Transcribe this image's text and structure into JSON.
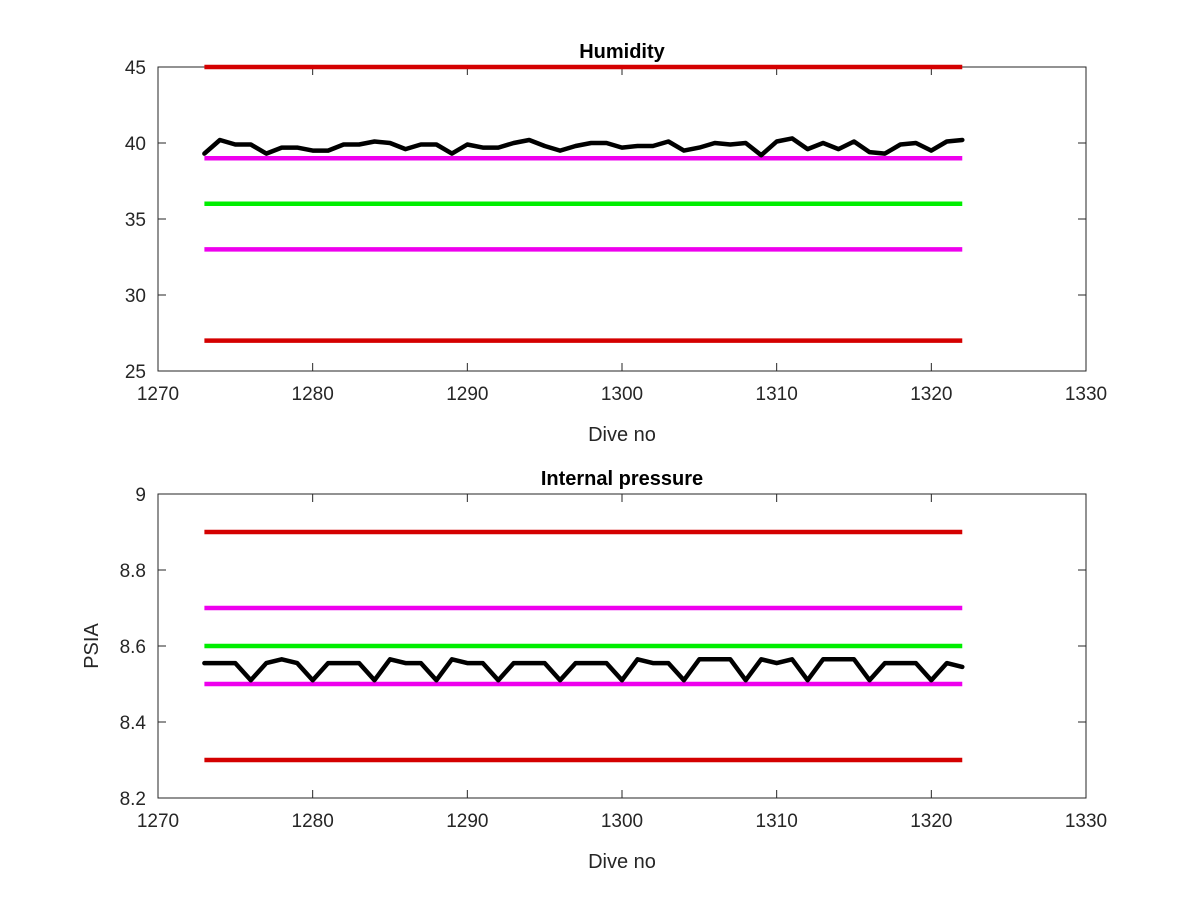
{
  "chart_data": [
    {
      "type": "line",
      "title": "Humidity",
      "xlabel": "Dive no",
      "ylabel": "",
      "xlim": [
        1270,
        1330
      ],
      "ylim": [
        25,
        45
      ],
      "xticks": [
        1270,
        1280,
        1290,
        1300,
        1310,
        1320,
        1330
      ],
      "yticks": [
        25,
        30,
        35,
        40,
        45
      ],
      "grid": false,
      "reference_lines": [
        {
          "y": 45,
          "x": [
            1273,
            1322
          ],
          "color": "#d40000"
        },
        {
          "y": 39,
          "x": [
            1273,
            1322
          ],
          "color": "#ee00ee"
        },
        {
          "y": 36,
          "x": [
            1273,
            1322
          ],
          "color": "#00ee00"
        },
        {
          "y": 33,
          "x": [
            1273,
            1322
          ],
          "color": "#ee00ee"
        },
        {
          "y": 27,
          "x": [
            1273,
            1322
          ],
          "color": "#d40000"
        }
      ],
      "series": [
        {
          "color": "#000000",
          "x": [
            1273,
            1274,
            1275,
            1276,
            1277,
            1278,
            1279,
            1280,
            1281,
            1282,
            1283,
            1284,
            1285,
            1286,
            1287,
            1288,
            1289,
            1290,
            1291,
            1292,
            1293,
            1294,
            1295,
            1296,
            1297,
            1298,
            1299,
            1300,
            1301,
            1302,
            1303,
            1304,
            1305,
            1306,
            1307,
            1308,
            1309,
            1310,
            1311,
            1312,
            1313,
            1314,
            1315,
            1316,
            1317,
            1318,
            1319,
            1320,
            1321,
            1322
          ],
          "values": [
            39.3,
            40.2,
            39.9,
            39.9,
            39.3,
            39.7,
            39.7,
            39.5,
            39.5,
            39.9,
            39.9,
            40.1,
            40.0,
            39.6,
            39.9,
            39.9,
            39.3,
            39.9,
            39.7,
            39.7,
            40.0,
            40.2,
            39.8,
            39.5,
            39.8,
            40.0,
            40.0,
            39.7,
            39.8,
            39.8,
            40.1,
            39.5,
            39.7,
            40.0,
            39.9,
            40.0,
            39.2,
            40.1,
            40.3,
            39.6,
            40.0,
            39.6,
            40.1,
            39.4,
            39.3,
            39.9,
            40.0,
            39.5,
            40.1,
            40.2
          ]
        }
      ]
    },
    {
      "type": "line",
      "title": "Internal pressure",
      "xlabel": "Dive no",
      "ylabel": "PSIA",
      "xlim": [
        1270,
        1330
      ],
      "ylim": [
        8.2,
        9
      ],
      "xticks": [
        1270,
        1280,
        1290,
        1300,
        1310,
        1320,
        1330
      ],
      "yticks": [
        8.2,
        8.4,
        8.6,
        8.8,
        9
      ],
      "grid": false,
      "reference_lines": [
        {
          "y": 8.9,
          "x": [
            1273,
            1322
          ],
          "color": "#d40000"
        },
        {
          "y": 8.7,
          "x": [
            1273,
            1322
          ],
          "color": "#ee00ee"
        },
        {
          "y": 8.6,
          "x": [
            1273,
            1322
          ],
          "color": "#00ee00"
        },
        {
          "y": 8.5,
          "x": [
            1273,
            1322
          ],
          "color": "#ee00ee"
        },
        {
          "y": 8.3,
          "x": [
            1273,
            1322
          ],
          "color": "#d40000"
        }
      ],
      "series": [
        {
          "color": "#000000",
          "x": [
            1273,
            1274,
            1275,
            1276,
            1277,
            1278,
            1279,
            1280,
            1281,
            1282,
            1283,
            1284,
            1285,
            1286,
            1287,
            1288,
            1289,
            1290,
            1291,
            1292,
            1293,
            1294,
            1295,
            1296,
            1297,
            1298,
            1299,
            1300,
            1301,
            1302,
            1303,
            1304,
            1305,
            1306,
            1307,
            1308,
            1309,
            1310,
            1311,
            1312,
            1313,
            1314,
            1315,
            1316,
            1317,
            1318,
            1319,
            1320,
            1321,
            1322
          ],
          "values": [
            8.555,
            8.555,
            8.555,
            8.51,
            8.555,
            8.565,
            8.555,
            8.51,
            8.555,
            8.555,
            8.555,
            8.51,
            8.565,
            8.555,
            8.555,
            8.51,
            8.565,
            8.555,
            8.555,
            8.51,
            8.555,
            8.555,
            8.555,
            8.51,
            8.555,
            8.555,
            8.555,
            8.51,
            8.565,
            8.555,
            8.555,
            8.51,
            8.565,
            8.565,
            8.565,
            8.51,
            8.565,
            8.555,
            8.565,
            8.51,
            8.565,
            8.565,
            8.565,
            8.51,
            8.555,
            8.555,
            8.555,
            8.51,
            8.555,
            8.545
          ]
        }
      ]
    }
  ]
}
